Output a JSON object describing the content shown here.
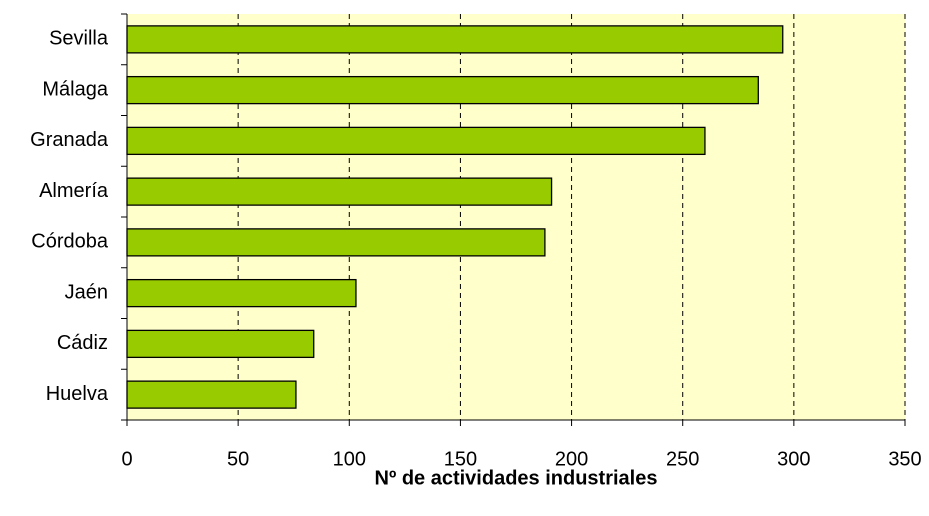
{
  "chart_data": {
    "type": "hbar",
    "xlabel": "Nº de actividades industriales",
    "categories": [
      "Sevilla",
      "Málaga",
      "Granada",
      "Almería",
      "Córdoba",
      "Jaén",
      "Cádiz",
      "Huelva"
    ],
    "values": [
      295,
      284,
      260,
      191,
      188,
      103,
      84,
      76
    ],
    "color": "#99cc00",
    "background": "#ffffcc",
    "xlim": [
      0,
      350
    ],
    "xticks": [
      0,
      50,
      100,
      150,
      200,
      250,
      300,
      350
    ],
    "grid": true
  }
}
